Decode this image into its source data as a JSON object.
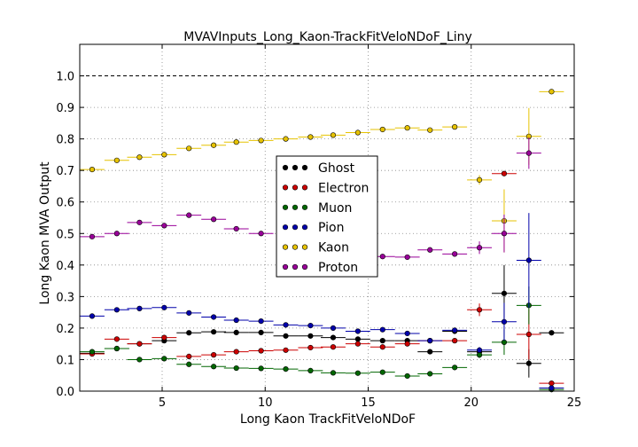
{
  "chart_data": {
    "type": "scatter",
    "title": "MVAVInputs_Long_Kaon-TrackFitVeloNDoF_Liny",
    "xlabel": "Long Kaon TrackFitVeloNDoF",
    "ylabel": "Long Kaon MVA Output",
    "xlim": [
      1,
      25
    ],
    "ylim": [
      0.0,
      1.1
    ],
    "xticks": [
      5,
      10,
      15,
      20,
      25
    ],
    "yticks": [
      "0.0",
      "0.1",
      "0.2",
      "0.3",
      "0.4",
      "0.5",
      "0.6",
      "0.7",
      "0.8",
      "0.9",
      "1.0"
    ],
    "x_half_width": 0.6,
    "x": [
      1.6,
      2.8,
      3.9,
      5.1,
      6.3,
      7.5,
      8.6,
      9.8,
      11.0,
      12.2,
      13.3,
      14.5,
      15.7,
      16.9,
      18.0,
      19.2,
      20.4,
      21.6,
      22.8,
      23.9
    ],
    "grid": true,
    "reference_line": 1.0,
    "legend_position": "center",
    "series": [
      {
        "name": "Ghost",
        "color": "#000000",
        "points": [
          [
            1.6,
            0.12,
            0.004
          ],
          [
            2.8,
            0.135,
            0.004
          ],
          [
            3.9,
            0.15,
            0.004
          ],
          [
            5.1,
            0.16,
            0.004
          ],
          [
            6.3,
            0.185,
            0.004
          ],
          [
            7.5,
            0.188,
            0.004
          ],
          [
            8.6,
            0.186,
            0.004
          ],
          [
            9.8,
            0.186,
            0.004
          ],
          [
            11.0,
            0.175,
            0.004
          ],
          [
            12.2,
            0.175,
            0.004
          ],
          [
            13.3,
            0.17,
            0.004
          ],
          [
            14.5,
            0.165,
            0.004
          ],
          [
            15.7,
            0.16,
            0.004
          ],
          [
            16.9,
            0.16,
            0.004
          ],
          [
            18.0,
            0.125,
            0.005
          ],
          [
            19.2,
            0.19,
            0.006
          ],
          [
            20.4,
            0.125,
            0.012
          ],
          [
            21.6,
            0.31,
            0.09
          ],
          [
            22.8,
            0.088,
            0.045
          ],
          [
            23.9,
            0.185,
            0.005
          ]
        ]
      },
      {
        "name": "Electron",
        "color": "#cc0000",
        "points": [
          [
            1.6,
            0.118,
            0.004
          ],
          [
            2.8,
            0.165,
            0.004
          ],
          [
            3.9,
            0.15,
            0.004
          ],
          [
            5.1,
            0.17,
            0.004
          ],
          [
            6.3,
            0.11,
            0.004
          ],
          [
            7.5,
            0.115,
            0.004
          ],
          [
            8.6,
            0.125,
            0.004
          ],
          [
            9.8,
            0.128,
            0.004
          ],
          [
            11.0,
            0.13,
            0.004
          ],
          [
            12.2,
            0.138,
            0.004
          ],
          [
            13.3,
            0.14,
            0.004
          ],
          [
            14.5,
            0.15,
            0.004
          ],
          [
            15.7,
            0.14,
            0.004
          ],
          [
            16.9,
            0.15,
            0.004
          ],
          [
            18.0,
            0.16,
            0.004
          ],
          [
            19.2,
            0.16,
            0.005
          ],
          [
            20.4,
            0.258,
            0.02
          ],
          [
            21.6,
            0.69,
            0.008
          ],
          [
            22.8,
            0.18,
            0.08
          ],
          [
            23.9,
            0.025,
            0.006
          ]
        ]
      },
      {
        "name": "Muon",
        "color": "#006600",
        "points": [
          [
            1.6,
            0.125,
            0.004
          ],
          [
            2.8,
            0.135,
            0.004
          ],
          [
            3.9,
            0.1,
            0.004
          ],
          [
            5.1,
            0.103,
            0.004
          ],
          [
            6.3,
            0.085,
            0.004
          ],
          [
            7.5,
            0.078,
            0.004
          ],
          [
            8.6,
            0.073,
            0.004
          ],
          [
            9.8,
            0.072,
            0.004
          ],
          [
            11.0,
            0.07,
            0.004
          ],
          [
            12.2,
            0.065,
            0.004
          ],
          [
            13.3,
            0.058,
            0.004
          ],
          [
            14.5,
            0.057,
            0.004
          ],
          [
            15.7,
            0.06,
            0.004
          ],
          [
            16.9,
            0.048,
            0.004
          ],
          [
            18.0,
            0.055,
            0.004
          ],
          [
            19.2,
            0.075,
            0.005
          ],
          [
            20.4,
            0.115,
            0.01
          ],
          [
            21.6,
            0.155,
            0.04
          ],
          [
            22.8,
            0.272,
            0.06
          ],
          [
            23.9,
            0.005,
            0.003
          ]
        ]
      },
      {
        "name": "Pion",
        "color": "#0000aa",
        "points": [
          [
            1.6,
            0.238,
            0.004
          ],
          [
            2.8,
            0.258,
            0.004
          ],
          [
            3.9,
            0.262,
            0.004
          ],
          [
            5.1,
            0.265,
            0.004
          ],
          [
            6.3,
            0.248,
            0.004
          ],
          [
            7.5,
            0.235,
            0.004
          ],
          [
            8.6,
            0.225,
            0.004
          ],
          [
            9.8,
            0.222,
            0.004
          ],
          [
            11.0,
            0.21,
            0.004
          ],
          [
            12.2,
            0.208,
            0.004
          ],
          [
            13.3,
            0.2,
            0.004
          ],
          [
            14.5,
            0.19,
            0.004
          ],
          [
            15.7,
            0.195,
            0.004
          ],
          [
            16.9,
            0.183,
            0.004
          ],
          [
            18.0,
            0.16,
            0.004
          ],
          [
            19.2,
            0.193,
            0.005
          ],
          [
            20.4,
            0.13,
            0.01
          ],
          [
            21.6,
            0.22,
            0.06
          ],
          [
            22.8,
            0.415,
            0.15
          ],
          [
            23.9,
            0.01,
            0.004
          ]
        ]
      },
      {
        "name": "Kaon",
        "color": "#e6c200",
        "points": [
          [
            1.6,
            0.703,
            0.004
          ],
          [
            2.8,
            0.732,
            0.004
          ],
          [
            3.9,
            0.742,
            0.004
          ],
          [
            5.1,
            0.75,
            0.004
          ],
          [
            6.3,
            0.77,
            0.004
          ],
          [
            7.5,
            0.78,
            0.004
          ],
          [
            8.6,
            0.79,
            0.004
          ],
          [
            9.8,
            0.795,
            0.004
          ],
          [
            11.0,
            0.8,
            0.004
          ],
          [
            12.2,
            0.806,
            0.004
          ],
          [
            13.3,
            0.812,
            0.004
          ],
          [
            14.5,
            0.82,
            0.004
          ],
          [
            15.7,
            0.83,
            0.004
          ],
          [
            16.9,
            0.835,
            0.004
          ],
          [
            18.0,
            0.828,
            0.004
          ],
          [
            19.2,
            0.838,
            0.005
          ],
          [
            20.4,
            0.67,
            0.015
          ],
          [
            21.6,
            0.54,
            0.1
          ],
          [
            22.8,
            0.808,
            0.09
          ],
          [
            23.9,
            0.95,
            0.005
          ]
        ]
      },
      {
        "name": "Proton",
        "color": "#990099",
        "points": [
          [
            1.6,
            0.49,
            0.004
          ],
          [
            2.8,
            0.5,
            0.004
          ],
          [
            3.9,
            0.535,
            0.004
          ],
          [
            5.1,
            0.525,
            0.004
          ],
          [
            6.3,
            0.558,
            0.004
          ],
          [
            7.5,
            0.545,
            0.004
          ],
          [
            8.6,
            0.515,
            0.004
          ],
          [
            9.8,
            0.5,
            0.004
          ],
          [
            15.7,
            0.427,
            0.004
          ],
          [
            16.9,
            0.425,
            0.004
          ],
          [
            18.0,
            0.448,
            0.004
          ],
          [
            19.2,
            0.435,
            0.005
          ],
          [
            20.4,
            0.455,
            0.02
          ],
          [
            21.6,
            0.5,
            0.06
          ],
          [
            22.8,
            0.755,
            0.05
          ]
        ]
      }
    ]
  }
}
